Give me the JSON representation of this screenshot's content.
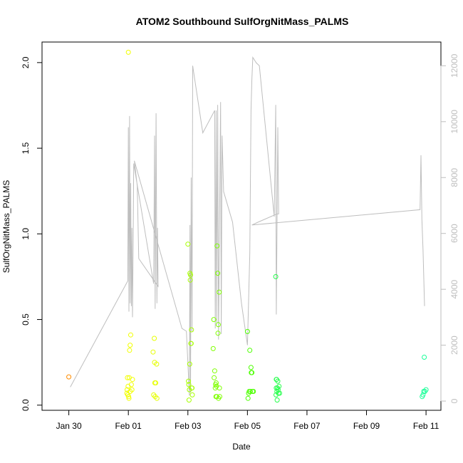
{
  "chart_data": {
    "type": "scatter",
    "title": "ATOM2 Southbound SulfOrgNitMass_PALMS",
    "xlabel": "Date",
    "ylabel": "SulfOrgNitMass_PALMS",
    "x_ticks": [
      "Jan 30",
      "Feb 01",
      "Feb 03",
      "Feb 05",
      "Feb 07",
      "Feb 09",
      "Feb 11"
    ],
    "y_ticks": [
      "0.0",
      "0.5",
      "1.0",
      "1.5",
      "2.0"
    ],
    "y2_ticks": [
      "0",
      "2000",
      "4000",
      "6000",
      "8000",
      "10000",
      "12000"
    ],
    "xlim_days": [
      -2.9,
      10.5
    ],
    "ylim": [
      -0.03,
      2.12
    ],
    "y2lim": [
      -330,
      12850
    ],
    "colors": {
      "axis": "#000000",
      "altitude_line": "#bebebe",
      "background": "#ffffff"
    },
    "series": [
      {
        "points": [
          [
            -2.0,
            0.165,
            "#ff8c00"
          ],
          [
            -0.05,
            0.07,
            "#f2ff00"
          ],
          [
            -0.04,
            0.09,
            "#f2ff00"
          ],
          [
            -0.03,
            0.16,
            "#f2ff00"
          ],
          [
            -0.02,
            0.06,
            "#f2ff00"
          ],
          [
            0.0,
            2.06,
            "#f2ff00"
          ],
          [
            0.01,
            0.05,
            "#f2ff00"
          ],
          [
            0.02,
            0.04,
            "#f2ff00"
          ],
          [
            0.03,
            0.16,
            "#f2ff00"
          ],
          [
            0.04,
            0.32,
            "#f2ff00"
          ],
          [
            0.06,
            0.35,
            "#f2ff00"
          ],
          [
            0.08,
            0.41,
            "#f2ff00"
          ],
          [
            0.1,
            0.12,
            "#f2ff00"
          ],
          [
            0.12,
            0.09,
            "#f2ff00"
          ],
          [
            0.14,
            0.15,
            "#f2ff00"
          ],
          [
            0.06,
            0.08,
            "#f2ff00"
          ],
          [
            -0.01,
            0.11,
            "#f2ff00"
          ],
          [
            0.83,
            0.31,
            "#e6ff00"
          ],
          [
            0.85,
            0.06,
            "#e6ff00"
          ],
          [
            0.87,
            0.39,
            "#e6ff00"
          ],
          [
            0.88,
            0.25,
            "#e6ff00"
          ],
          [
            0.9,
            0.05,
            "#e6ff00"
          ],
          [
            0.92,
            0.13,
            "#e6ff00"
          ],
          [
            0.95,
            0.24,
            "#e6ff00"
          ],
          [
            0.96,
            0.04,
            "#e6ff00"
          ],
          [
            0.89,
            0.13,
            "#e6ff00"
          ],
          [
            2.0,
            0.94,
            "#a6ff00"
          ],
          [
            2.02,
            0.14,
            "#a6ff00"
          ],
          [
            2.03,
            0.12,
            "#a6ff00"
          ],
          [
            2.04,
            0.03,
            "#a6ff00"
          ],
          [
            2.05,
            0.09,
            "#a6ff00"
          ],
          [
            2.06,
            0.24,
            "#a6ff00"
          ],
          [
            2.07,
            0.77,
            "#a6ff00"
          ],
          [
            2.08,
            0.73,
            "#a6ff00"
          ],
          [
            2.09,
            0.76,
            "#a6ff00"
          ],
          [
            2.1,
            0.36,
            "#a6ff00"
          ],
          [
            2.11,
            0.36,
            "#a6ff00"
          ],
          [
            2.12,
            0.44,
            "#a6ff00"
          ],
          [
            2.13,
            0.1,
            "#a6ff00"
          ],
          [
            2.14,
            0.1,
            "#a6ff00"
          ],
          [
            2.15,
            0.06,
            "#a6ff00"
          ],
          [
            2.85,
            0.33,
            "#7fff00"
          ],
          [
            2.87,
            0.5,
            "#7fff00"
          ],
          [
            2.88,
            0.16,
            "#7fff00"
          ],
          [
            2.9,
            0.2,
            "#7fff00"
          ],
          [
            2.92,
            0.1,
            "#7fff00"
          ],
          [
            2.93,
            0.12,
            "#7fff00"
          ],
          [
            2.95,
            0.13,
            "#7fff00"
          ],
          [
            2.96,
            0.11,
            "#7fff00"
          ],
          [
            2.97,
            0.05,
            "#7fff00"
          ],
          [
            2.98,
            0.93,
            "#7fff00"
          ],
          [
            3.0,
            0.77,
            "#7fff00"
          ],
          [
            3.01,
            0.42,
            "#7fff00"
          ],
          [
            3.02,
            0.47,
            "#7fff00"
          ],
          [
            3.03,
            0.04,
            "#7fff00"
          ],
          [
            3.05,
            0.66,
            "#7fff00"
          ],
          [
            3.06,
            0.1,
            "#7fff00"
          ],
          [
            3.07,
            0.05,
            "#7fff00"
          ],
          [
            2.94,
            0.05,
            "#7fff00"
          ],
          [
            4.0,
            0.43,
            "#4cff00"
          ],
          [
            4.02,
            0.04,
            "#4cff00"
          ],
          [
            4.04,
            0.07,
            "#4cff00"
          ],
          [
            4.06,
            0.08,
            "#4cff00"
          ],
          [
            4.08,
            0.32,
            "#4cff00"
          ],
          [
            4.1,
            0.08,
            "#4cff00"
          ],
          [
            4.12,
            0.22,
            "#4cff00"
          ],
          [
            4.13,
            0.19,
            "#4cff00"
          ],
          [
            4.15,
            0.19,
            "#4cff00"
          ],
          [
            4.17,
            0.08,
            "#4cff00"
          ],
          [
            4.2,
            0.08,
            "#4cff00"
          ],
          [
            4.95,
            0.75,
            "#26ff4c"
          ],
          [
            4.96,
            0.06,
            "#26ff4c"
          ],
          [
            4.97,
            0.15,
            "#26ff4c"
          ],
          [
            4.98,
            0.15,
            "#26ff4c"
          ],
          [
            4.99,
            0.08,
            "#26ff4c"
          ],
          [
            5.0,
            0.03,
            "#26ff4c"
          ],
          [
            5.01,
            0.1,
            "#26ff4c"
          ],
          [
            5.02,
            0.14,
            "#26ff4c"
          ],
          [
            5.03,
            0.09,
            "#26ff4c"
          ],
          [
            5.04,
            0.07,
            "#26ff4c"
          ],
          [
            5.06,
            0.11,
            "#26ff4c"
          ],
          [
            5.08,
            0.07,
            "#26ff4c"
          ],
          [
            4.97,
            0.1,
            "#26ff4c"
          ],
          [
            9.87,
            0.05,
            "#1aff99"
          ],
          [
            9.9,
            0.06,
            "#1aff99"
          ],
          [
            9.92,
            0.08,
            "#1aff99"
          ],
          [
            9.94,
            0.28,
            "#1aff99"
          ],
          [
            9.96,
            0.08,
            "#1aff99"
          ],
          [
            10.0,
            0.09,
            "#1aff99"
          ]
        ]
      }
    ],
    "altitude_path": [
      [
        -1.95,
        500
      ],
      [
        -0.02,
        4300
      ],
      [
        0.0,
        9800
      ],
      [
        0.02,
        3200
      ],
      [
        0.04,
        10200
      ],
      [
        0.06,
        3500
      ],
      [
        0.08,
        7800
      ],
      [
        0.1,
        3400
      ],
      [
        0.12,
        6200
      ],
      [
        0.14,
        3000
      ],
      [
        0.16,
        5500
      ],
      [
        0.18,
        8500
      ],
      [
        0.85,
        4200
      ],
      [
        0.88,
        9500
      ],
      [
        0.9,
        3300
      ],
      [
        0.93,
        10300
      ],
      [
        0.96,
        3500
      ],
      [
        0.98,
        6200
      ],
      [
        1.0,
        4100
      ],
      [
        0.35,
        5100
      ],
      [
        0.3,
        7700
      ],
      [
        0.2,
        8600
      ],
      [
        1.8,
        2600
      ],
      [
        1.95,
        2500
      ],
      [
        2.05,
        200
      ],
      [
        2.07,
        6300
      ],
      [
        2.09,
        300
      ],
      [
        2.11,
        8000
      ],
      [
        2.14,
        2500
      ],
      [
        2.16,
        12000
      ],
      [
        2.5,
        9600
      ],
      [
        2.9,
        10400
      ],
      [
        2.92,
        2600
      ],
      [
        2.95,
        10400
      ],
      [
        2.97,
        2800
      ],
      [
        3.0,
        10600
      ],
      [
        3.03,
        2200
      ],
      [
        3.1,
        10700
      ],
      [
        3.12,
        2400
      ],
      [
        3.15,
        9500
      ],
      [
        3.2,
        7500
      ],
      [
        3.5,
        6400
      ],
      [
        3.8,
        3500
      ],
      [
        4.0,
        2000
      ],
      [
        4.08,
        5300
      ],
      [
        4.12,
        10400
      ],
      [
        4.15,
        11500
      ],
      [
        4.18,
        12300
      ],
      [
        4.3,
        12100
      ],
      [
        4.4,
        12000
      ],
      [
        4.9,
        6600
      ],
      [
        4.95,
        10600
      ],
      [
        4.97,
        3100
      ],
      [
        5.0,
        6800
      ],
      [
        5.02,
        9800
      ],
      [
        5.05,
        6700
      ],
      [
        5.0,
        6700
      ],
      [
        4.35,
        6400
      ],
      [
        4.15,
        6300
      ],
      [
        9.8,
        6850
      ],
      [
        9.83,
        8800
      ],
      [
        9.86,
        6500
      ],
      [
        9.9,
        5400
      ],
      [
        9.95,
        3400
      ]
    ]
  }
}
